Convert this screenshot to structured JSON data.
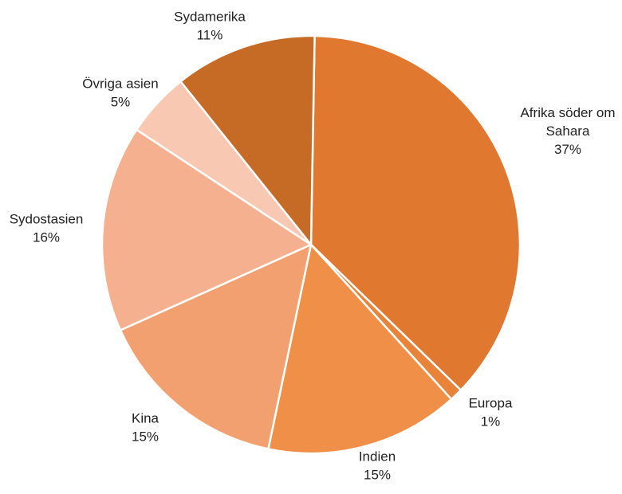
{
  "chart_data": {
    "type": "pie",
    "title": "",
    "slices": [
      {
        "name": "Afrika söder om Sahara",
        "label_lines": [
          "Afrika söder om",
          "Sahara"
        ],
        "value": 37,
        "value_label": "37%",
        "color": "#E07830"
      },
      {
        "name": "Europa",
        "label_lines": [
          "Europa"
        ],
        "value": 1,
        "value_label": "1%",
        "color": "#E8833A"
      },
      {
        "name": "Indien",
        "label_lines": [
          "Indien"
        ],
        "value": 15,
        "value_label": "15%",
        "color": "#F09048"
      },
      {
        "name": "Kina",
        "label_lines": [
          "Kina"
        ],
        "value": 15,
        "value_label": "15%",
        "color": "#F2A070"
      },
      {
        "name": "Sydostasien",
        "label_lines": [
          "Sydostasien"
        ],
        "value": 16,
        "value_label": "16%",
        "color": "#F5B090"
      },
      {
        "name": "Övriga asien",
        "label_lines": [
          "Övriga asien"
        ],
        "value": 5,
        "value_label": "5%",
        "color": "#F8C8B2"
      },
      {
        "name": "Sydamerika",
        "label_lines": [
          "Sydamerika"
        ],
        "value": 11,
        "value_label": "11%",
        "color": "#C66B26"
      }
    ]
  }
}
